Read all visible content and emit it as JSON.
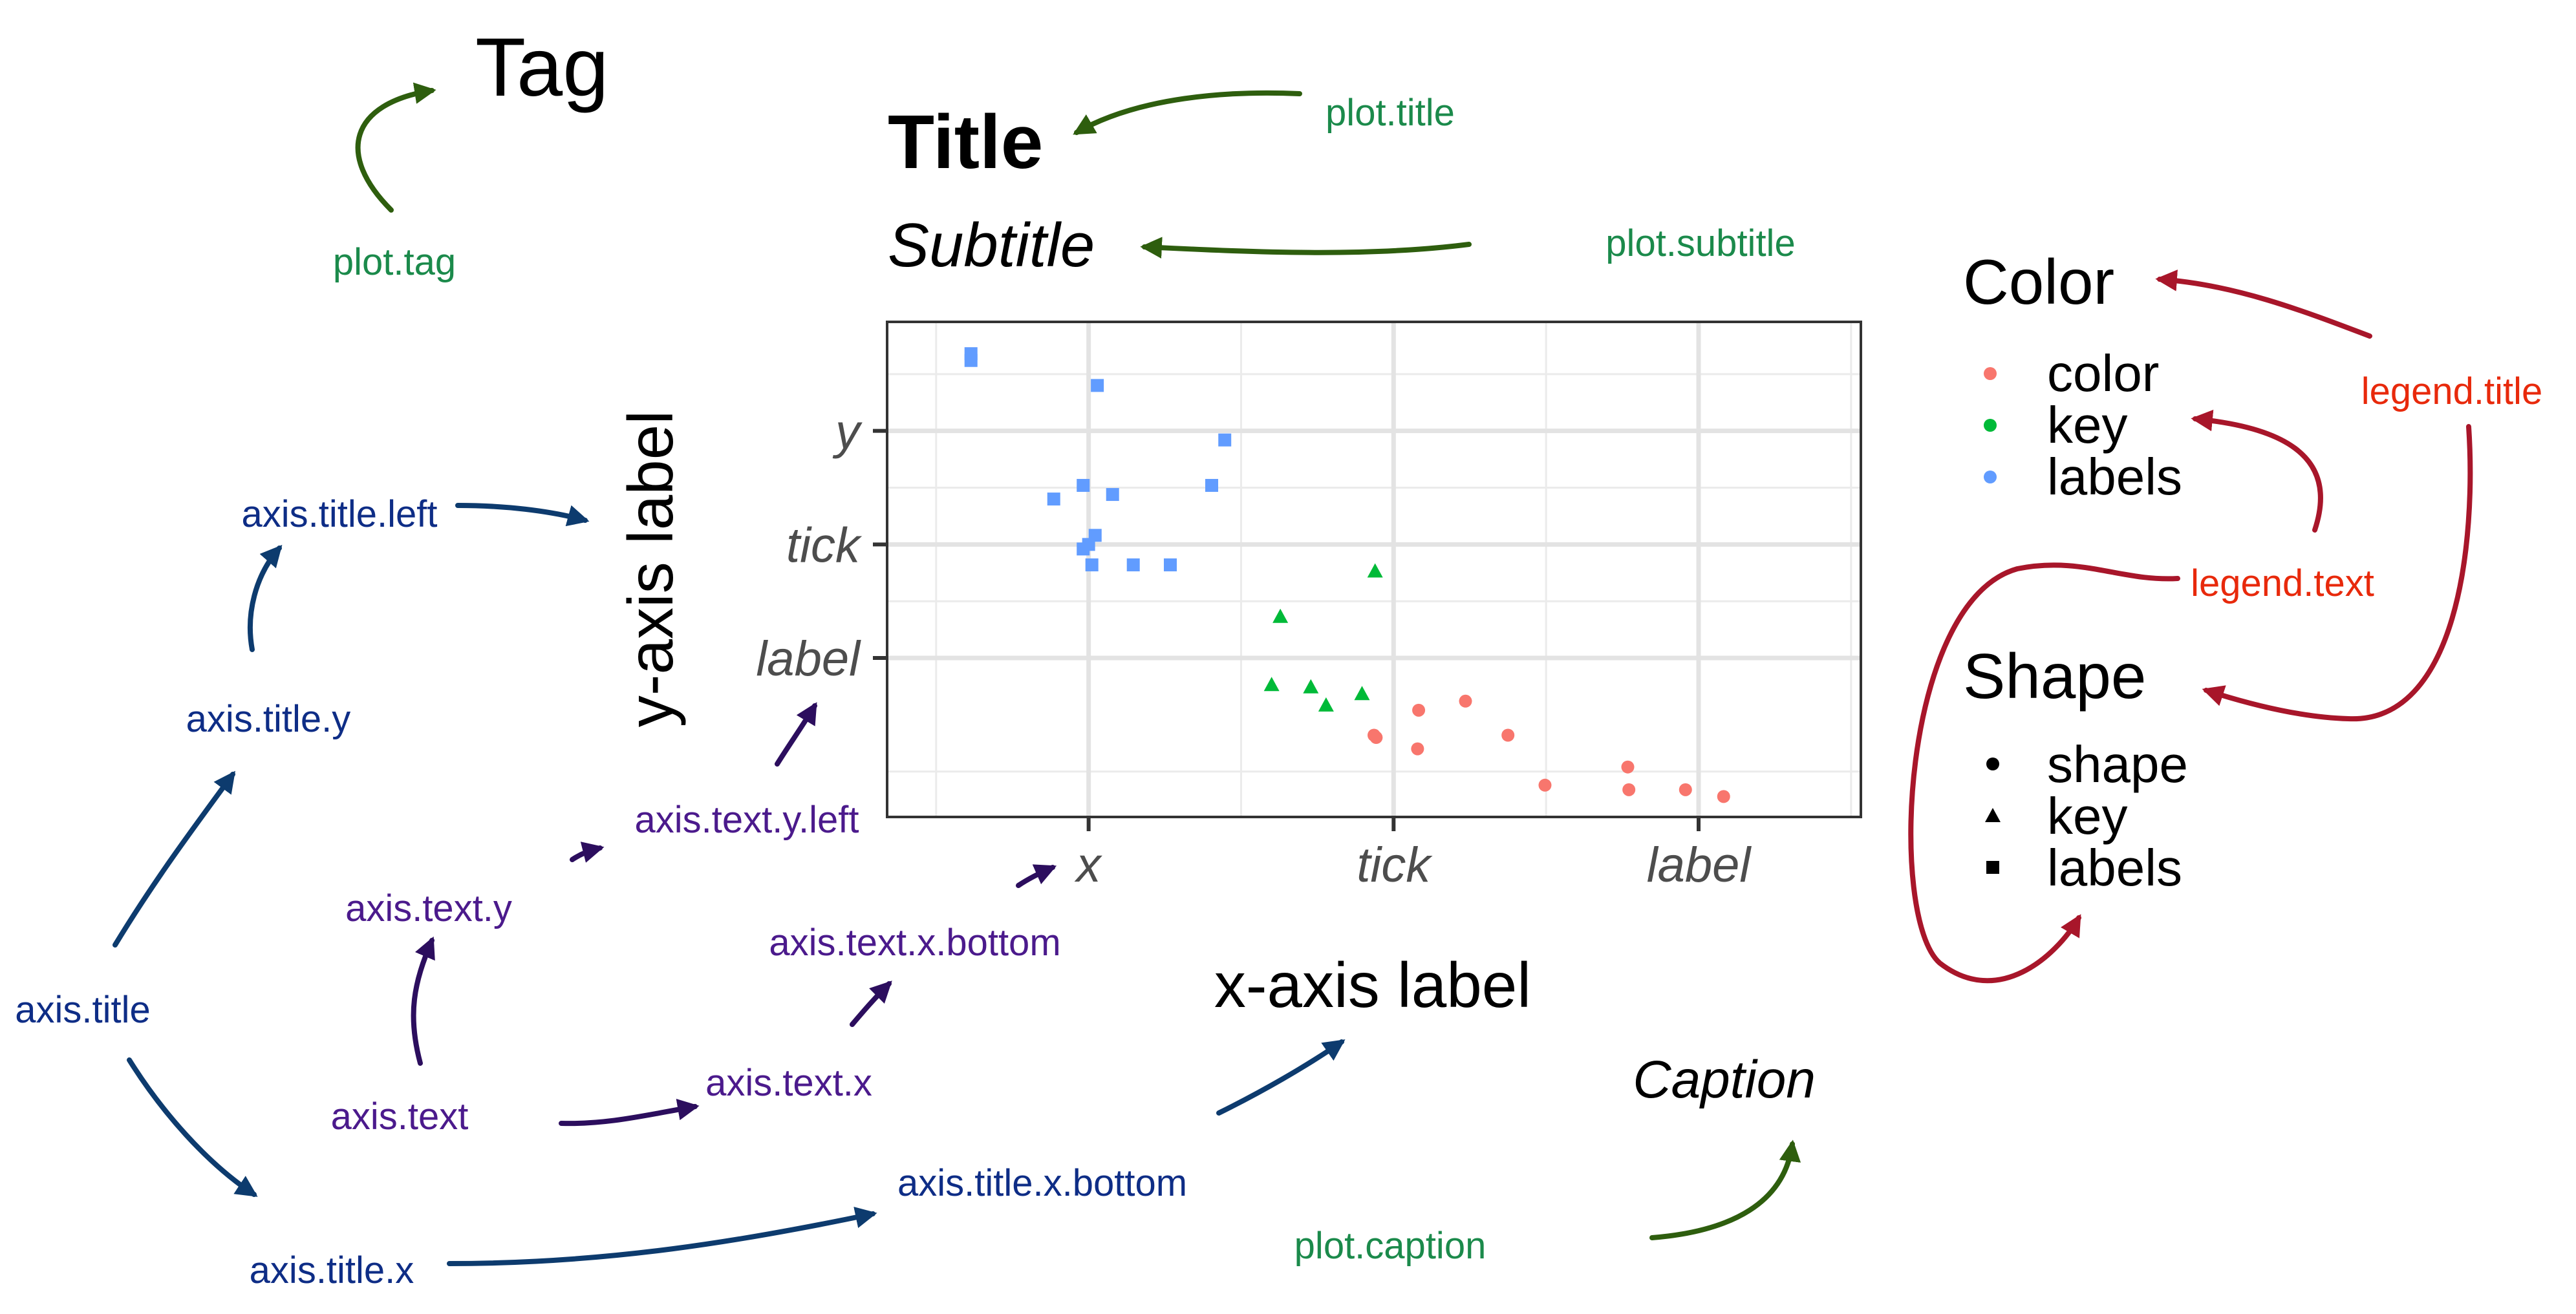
{
  "plot": {
    "tag": "Tag",
    "title": "Title",
    "subtitle": "Subtitle",
    "caption": "Caption",
    "x_axis_title": "x-axis label",
    "y_axis_title": "y-axis label",
    "x_tick_labels": [
      "x",
      "tick",
      "label"
    ],
    "y_tick_labels": [
      "y",
      "tick",
      "label"
    ]
  },
  "legend": {
    "color_title": "Color",
    "color_items": [
      {
        "label": "color",
        "color": "#F8766D"
      },
      {
        "label": "key",
        "color": "#00BA38"
      },
      {
        "label": "labels",
        "color": "#619CFF"
      }
    ],
    "shape_title": "Shape",
    "shape_items": [
      {
        "label": "shape",
        "shape": "circle"
      },
      {
        "label": "key",
        "shape": "triangle"
      },
      {
        "label": "labels",
        "shape": "square"
      }
    ]
  },
  "annotations": {
    "plot_tag": "plot.tag",
    "plot_title": "plot.title",
    "plot_subtitle": "plot.subtitle",
    "plot_caption": "plot.caption",
    "legend_title": "legend.title",
    "legend_text": "legend.text",
    "axis_title": "axis.title",
    "axis_title_y": "axis.title.y",
    "axis_title_left": "axis.title.left",
    "axis_title_x": "axis.title.x",
    "axis_title_x_bottom": "axis.title.x.bottom",
    "axis_text": "axis.text",
    "axis_text_y": "axis.text.y",
    "axis_text_y_left": "axis.text.y.left",
    "axis_text_x": "axis.text.x",
    "axis_text_x_bottom": "axis.text.x.bottom"
  },
  "colors": {
    "green_label": "#1B8A4B",
    "green_arrow": "#2E5E0E",
    "navy": "#0E2D86",
    "navy_arrow": "#0D3B6E",
    "purple": "#4B1A8C",
    "purple_arrow": "#2C0E5E",
    "red_label": "#E8290B",
    "red_arrow": "#A8162A",
    "red_point": "#F8766D",
    "green_point": "#00BA38",
    "blue_point": "#619CFF"
  },
  "chart_data": {
    "type": "scatter",
    "series": [
      {
        "name": "color",
        "shape": "circle",
        "color": "#F8766D",
        "points": [
          [
            40.4,
            1.75
          ],
          [
            40.2,
            1.8
          ],
          [
            44.3,
            2.35
          ],
          [
            48.6,
            2.55
          ],
          [
            44.2,
            1.5
          ],
          [
            52.5,
            1.8
          ],
          [
            55.9,
            0.7
          ],
          [
            63.5,
            1.1
          ],
          [
            63.6,
            0.6
          ],
          [
            68.8,
            0.6
          ],
          [
            72.3,
            0.45
          ]
        ]
      },
      {
        "name": "key",
        "shape": "triangle",
        "color": "#00BA38",
        "points": [
          [
            40.3,
            5.4
          ],
          [
            31.6,
            4.4
          ],
          [
            30.8,
            2.9
          ],
          [
            34.4,
            2.85
          ],
          [
            35.8,
            2.45
          ],
          [
            39.1,
            2.7
          ]
        ]
      },
      {
        "name": "labels",
        "shape": "square",
        "color": "#619CFF",
        "points": [
          [
            3.2,
            10.2
          ],
          [
            3.2,
            10.05
          ],
          [
            14.8,
            9.5
          ],
          [
            26.5,
            8.3
          ],
          [
            13.5,
            7.3
          ],
          [
            10.8,
            7.0
          ],
          [
            16.2,
            7.1
          ],
          [
            25.3,
            7.3
          ],
          [
            14.6,
            6.2
          ],
          [
            14.0,
            6.0
          ],
          [
            13.5,
            5.9
          ],
          [
            14.3,
            5.55
          ],
          [
            18.1,
            5.55
          ],
          [
            21.5,
            5.55
          ]
        ]
      }
    ],
    "x_ticks": [
      {
        "value": 14,
        "label": "x"
      },
      {
        "value": 42,
        "label": "tick"
      },
      {
        "value": 70,
        "label": "label"
      }
    ],
    "y_ticks": [
      {
        "value": 8.5,
        "label": "y"
      },
      {
        "value": 6.0,
        "label": "tick"
      },
      {
        "value": 3.5,
        "label": "label"
      }
    ],
    "x_minor": [
      0,
      28,
      56,
      84
    ],
    "y_minor": [
      1.0,
      4.75,
      7.25,
      9.75
    ],
    "xlim": [
      -4.5,
      84.9
    ],
    "ylim": [
      0,
      10.9
    ],
    "grid": true,
    "xlabel": "x-axis label",
    "ylabel": "y-axis label",
    "title": "Title",
    "subtitle": "Subtitle"
  }
}
